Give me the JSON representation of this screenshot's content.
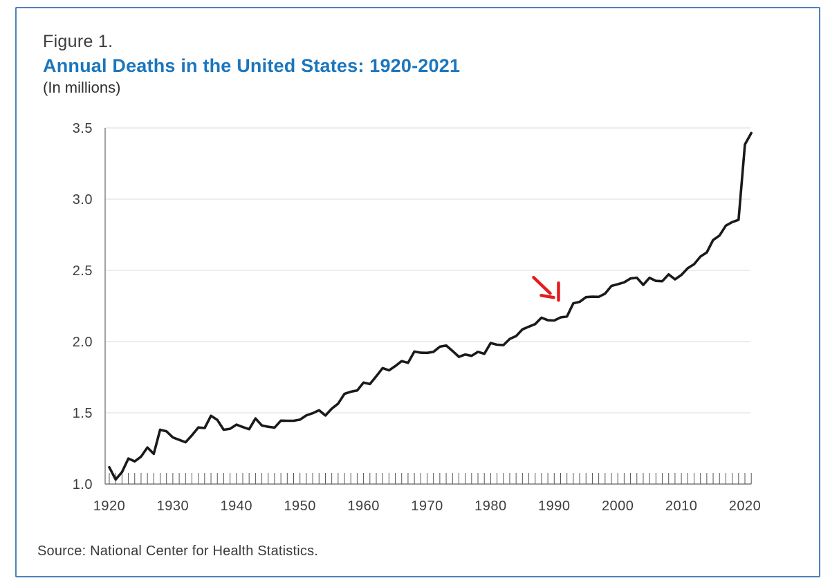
{
  "figure": {
    "label": "Figure 1.",
    "title": "Annual Deaths in the United States: 1920-2021",
    "subtitle": "(In millions)",
    "source": "Source: National Center for Health Statistics."
  },
  "colors": {
    "title_blue": "#1b76bd",
    "frame_blue": "#4e81b8",
    "line_black": "#1a1a1a",
    "grid_gray": "#e2e2e2",
    "axis_gray": "#7a7a7a",
    "tick_gray": "#555555",
    "label_gray": "#3d3d3d",
    "annotation_red": "#e51c1c"
  },
  "chart_data": {
    "type": "line",
    "title": "Annual Deaths in the United States: 1920-2021",
    "subtitle": "(In millions)",
    "units": "millions of deaths per year",
    "xlabel": "",
    "ylabel": "(In millions)",
    "x_start": 1920,
    "x_end": 2021,
    "ylim": [
      1.0,
      3.5
    ],
    "y_ticks": [
      1.0,
      1.5,
      2.0,
      2.5,
      3.0,
      3.5
    ],
    "x_tick_years": [
      1920,
      1930,
      1940,
      1950,
      1960,
      1970,
      1980,
      1990,
      2000,
      2010,
      2020
    ],
    "grid": "horizontal-only",
    "legend": "none",
    "minor_ticks": "every year 1920 through 2021",
    "values": [
      1.118,
      1.032,
      1.084,
      1.179,
      1.159,
      1.192,
      1.257,
      1.212,
      1.381,
      1.37,
      1.327,
      1.31,
      1.293,
      1.342,
      1.397,
      1.393,
      1.479,
      1.45,
      1.381,
      1.388,
      1.417,
      1.4,
      1.385,
      1.46,
      1.411,
      1.402,
      1.396,
      1.445,
      1.444,
      1.444,
      1.452,
      1.482,
      1.497,
      1.518,
      1.481,
      1.529,
      1.564,
      1.633,
      1.648,
      1.657,
      1.712,
      1.702,
      1.757,
      1.814,
      1.798,
      1.828,
      1.863,
      1.851,
      1.93,
      1.922,
      1.921,
      1.928,
      1.964,
      1.973,
      1.934,
      1.893,
      1.909,
      1.9,
      1.928,
      1.914,
      1.99,
      1.978,
      1.975,
      2.019,
      2.039,
      2.086,
      2.105,
      2.123,
      2.168,
      2.15,
      2.148,
      2.17,
      2.176,
      2.269,
      2.279,
      2.312,
      2.315,
      2.314,
      2.337,
      2.391,
      2.403,
      2.416,
      2.443,
      2.448,
      2.398,
      2.448,
      2.426,
      2.424,
      2.472,
      2.437,
      2.468,
      2.515,
      2.543,
      2.597,
      2.626,
      2.713,
      2.744,
      2.814,
      2.839,
      2.855,
      3.384,
      3.464
    ],
    "annotation": {
      "type": "hand-drawn-arrow",
      "direction": "down-right",
      "target_year": 1991,
      "target_value": 2.3,
      "color": "#e51c1c"
    }
  }
}
